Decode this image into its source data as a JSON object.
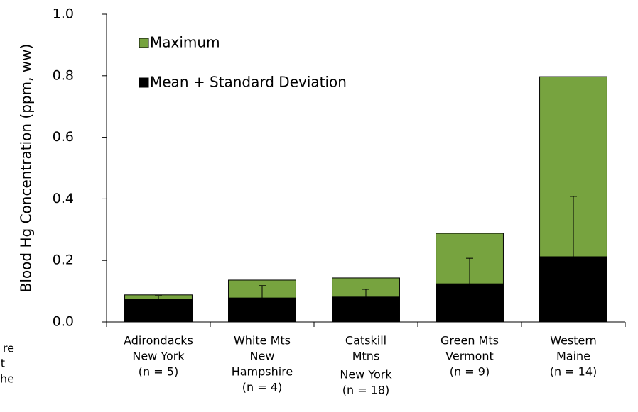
{
  "chart_data": {
    "type": "bar_overlay",
    "ylabel": "Blood Hg Concentration (ppm, ww)",
    "categories": [
      [
        "Adirondacks",
        "New York",
        "(n = 5)"
      ],
      [
        "White Mts",
        "New",
        "Hampshire",
        "(n = 4)"
      ],
      [
        "Catskill",
        "Mtns",
        "New York",
        "(n = 18)"
      ],
      [
        "Green Mts",
        "Vermont",
        "(n = 9)"
      ],
      [
        "Western",
        "Maine",
        "(n = 14)"
      ]
    ],
    "series": [
      {
        "name": "Maximum",
        "color": "#77a33f",
        "values": [
          0.088,
          0.136,
          0.143,
          0.288,
          0.797
        ]
      },
      {
        "name": "Mean + Standard Deviation",
        "color": "#000000",
        "values": [
          0.074,
          0.078,
          0.081,
          0.124,
          0.212
        ],
        "errors": [
          0.011,
          0.04,
          0.025,
          0.083,
          0.196
        ]
      }
    ],
    "ylim": [
      0,
      1.0
    ],
    "yticks": [
      {
        "value": 0,
        "label": "0.0"
      },
      0.2,
      0.4,
      0.6,
      0.8,
      {
        "value": 1.0,
        "label": "1.0"
      }
    ]
  },
  "side_fragments": [
    "re",
    "t",
    "he"
  ]
}
